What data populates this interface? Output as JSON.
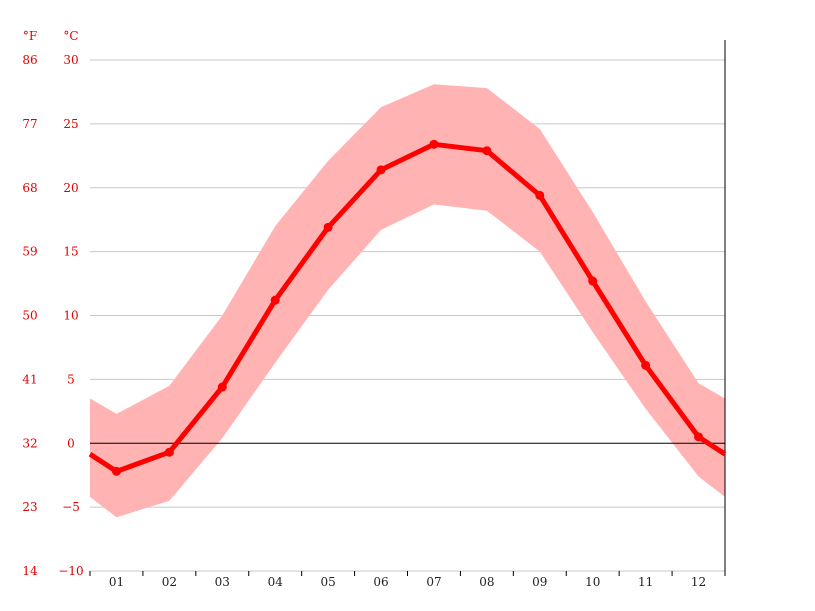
{
  "chart_data": {
    "type": "line",
    "title": "",
    "xlabel": "",
    "ylabel": "",
    "units": {
      "fahrenheit": "°F",
      "celsius": "°C"
    },
    "categories": [
      "01",
      "02",
      "03",
      "04",
      "05",
      "06",
      "07",
      "08",
      "09",
      "10",
      "11",
      "12"
    ],
    "ylim": [
      -10,
      30
    ],
    "celsius_ticks": [
      30,
      25,
      20,
      15,
      10,
      5,
      0,
      -5,
      -10
    ],
    "fahrenheit_ticks": [
      86,
      77,
      68,
      59,
      50,
      41,
      32,
      23,
      14
    ],
    "grid": true,
    "zero_line": true,
    "series": [
      {
        "kind": "mean-line",
        "values": [
          -2.2,
          -0.7,
          4.4,
          11.2,
          16.9,
          21.4,
          23.4,
          22.9,
          19.4,
          12.7,
          6.1,
          0.5
        ]
      },
      {
        "kind": "band-max",
        "values": [
          2.3,
          4.5,
          10.0,
          17.0,
          22.1,
          26.3,
          28.1,
          27.8,
          24.6,
          18.1,
          11.1,
          4.7
        ]
      },
      {
        "kind": "band-min",
        "values": [
          -5.8,
          -4.5,
          0.4,
          6.3,
          12.0,
          16.7,
          18.7,
          18.2,
          15.0,
          8.7,
          2.7,
          -2.6
        ]
      }
    ],
    "colors": {
      "line": "#ff0000",
      "band": "#ffb3b3",
      "grid": "#c8c8c8",
      "zero_line": "#000000",
      "y_labels": "#e00000",
      "x_labels": "#222222",
      "axis": "#000000"
    }
  }
}
